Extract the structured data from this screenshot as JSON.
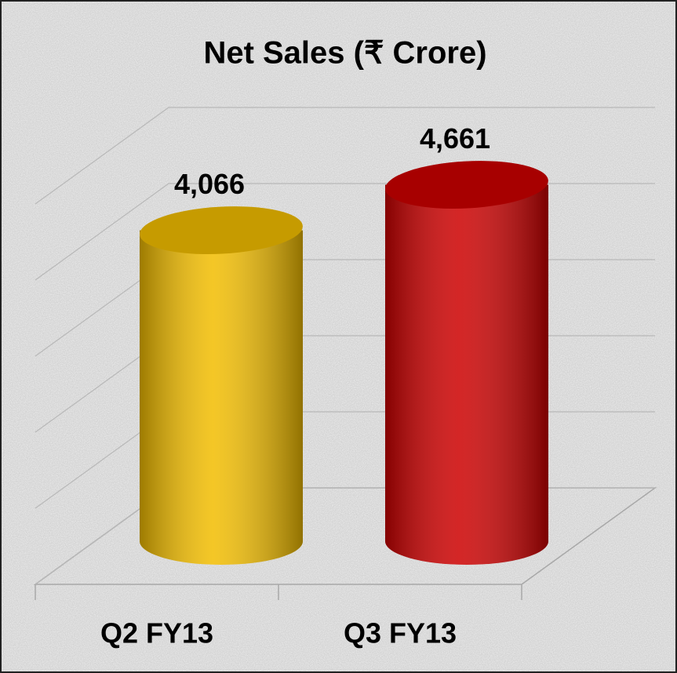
{
  "chart_data": {
    "type": "bar",
    "title": "Net Sales (₹ Crore)",
    "categories": [
      "Q2 FY13",
      "Q3 FY13"
    ],
    "values": [
      4066,
      4661
    ],
    "value_labels": [
      "4,066",
      "4,661"
    ],
    "colors": [
      "#f2bd00",
      "#cc0000"
    ],
    "ylim": [
      0,
      5000
    ],
    "yticks": [
      0,
      1000,
      2000,
      3000,
      4000,
      5000
    ],
    "grid": true
  }
}
